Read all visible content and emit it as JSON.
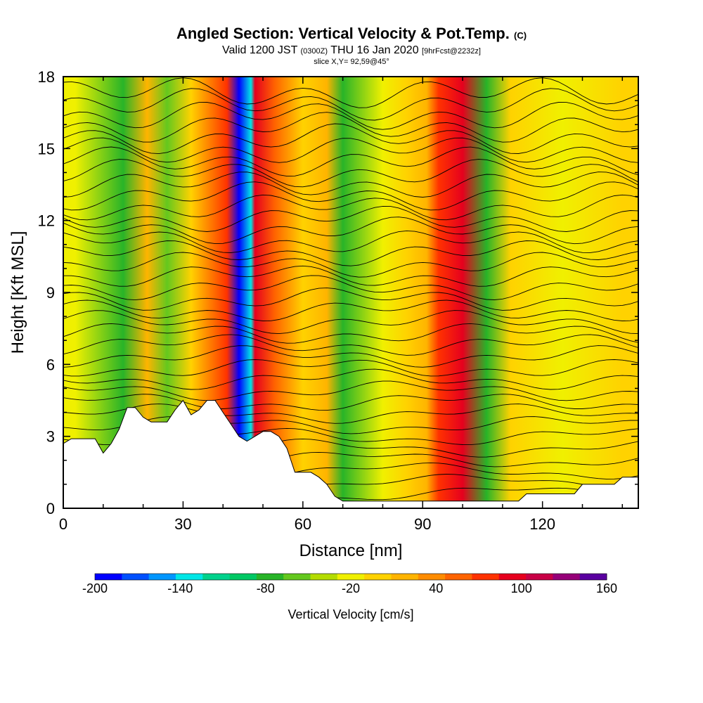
{
  "header": {
    "title_main": "Angled Section: Vertical Velocity & Pot.Temp.",
    "title_unit": "(C)",
    "valid_prefix": "Valid 1200 JST",
    "valid_utc": "(0300Z)",
    "valid_date": "THU 16 Jan 2020",
    "forecast_tag": "[9hrFcst@2232z]",
    "slice_info": "slice X,Y= 92,59@45°"
  },
  "chart_data": {
    "type": "heatmap",
    "xlabel": "Distance [nm]",
    "ylabel": "Height [Kft MSL]",
    "xlim": [
      0,
      144
    ],
    "ylim": [
      0,
      18
    ],
    "xticks": [
      0,
      30,
      60,
      90,
      120
    ],
    "yticks": [
      0,
      3,
      6,
      9,
      12,
      15,
      18
    ],
    "colorbar": {
      "title": "Vertical Velocity [cm/s]",
      "levels": [
        -200,
        -180,
        -160,
        -140,
        -120,
        -100,
        -80,
        -60,
        -40,
        -20,
        0,
        20,
        40,
        60,
        80,
        100,
        120,
        140,
        160
      ],
      "labels": [
        -200,
        -140,
        -80,
        -20,
        40,
        100,
        160
      ],
      "colors": [
        "#0000ff",
        "#0050ff",
        "#0096ff",
        "#00e6e6",
        "#00d28c",
        "#00c864",
        "#28b428",
        "#64c81e",
        "#b4dc00",
        "#f0f000",
        "#ffd200",
        "#ffb400",
        "#ff8c00",
        "#ff6400",
        "#ff3200",
        "#e6001e",
        "#c80046",
        "#960078",
        "#5a00a0"
      ]
    },
    "velocity_bands": [
      {
        "x": 3,
        "value": -10
      },
      {
        "x": 15,
        "value": -60
      },
      {
        "x": 21,
        "value": 40
      },
      {
        "x": 26,
        "value": -40
      },
      {
        "x": 32,
        "value": 20
      },
      {
        "x": 41,
        "value": 100
      },
      {
        "x": 44,
        "value": -200
      },
      {
        "x": 47,
        "value": -120
      },
      {
        "x": 48,
        "value": 120
      },
      {
        "x": 53,
        "value": 80
      },
      {
        "x": 60,
        "value": 20
      },
      {
        "x": 66,
        "value": 40
      },
      {
        "x": 70,
        "value": -60
      },
      {
        "x": 80,
        "value": 0
      },
      {
        "x": 86,
        "value": 20
      },
      {
        "x": 91,
        "value": 40
      },
      {
        "x": 94,
        "value": 100
      },
      {
        "x": 100,
        "value": 120
      },
      {
        "x": 106,
        "value": -60
      },
      {
        "x": 112,
        "value": 20
      },
      {
        "x": 125,
        "value": 0
      },
      {
        "x": 140,
        "value": 20
      }
    ],
    "terrain": [
      [
        0,
        2.7
      ],
      [
        2,
        2.9
      ],
      [
        8,
        2.9
      ],
      [
        10,
        2.3
      ],
      [
        12,
        2.7
      ],
      [
        14,
        3.3
      ],
      [
        16,
        4.2
      ],
      [
        18,
        4.2
      ],
      [
        20,
        3.8
      ],
      [
        22,
        3.6
      ],
      [
        26,
        3.6
      ],
      [
        28,
        4.1
      ],
      [
        30,
        4.5
      ],
      [
        32,
        3.9
      ],
      [
        34,
        4.1
      ],
      [
        36,
        4.5
      ],
      [
        38,
        4.5
      ],
      [
        40,
        4.0
      ],
      [
        42,
        3.5
      ],
      [
        44,
        3.0
      ],
      [
        46,
        2.8
      ],
      [
        48,
        3.0
      ],
      [
        50,
        3.2
      ],
      [
        52,
        3.2
      ],
      [
        54,
        3.0
      ],
      [
        56,
        2.5
      ],
      [
        58,
        1.5
      ],
      [
        62,
        1.5
      ],
      [
        64,
        1.3
      ],
      [
        66,
        1.0
      ],
      [
        68,
        0.5
      ],
      [
        70,
        0.3
      ],
      [
        114,
        0.3
      ],
      [
        116,
        0.6
      ],
      [
        128,
        0.6
      ],
      [
        130,
        1.0
      ],
      [
        138,
        1.0
      ],
      [
        140,
        1.3
      ],
      [
        144,
        1.3
      ]
    ],
    "isentropes": {
      "count": 36,
      "labeled": true
    }
  }
}
